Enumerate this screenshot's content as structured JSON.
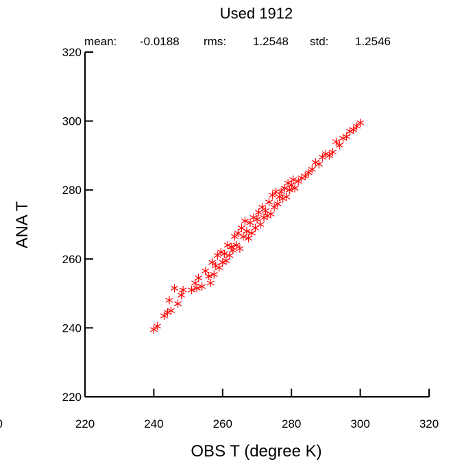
{
  "stats": {
    "mean_label": "mean:",
    "mean_value": "-0.0188",
    "rms_label": "rms:",
    "rms_value": "1.2548",
    "std_label": "std:",
    "std_value": "1.2546"
  },
  "colors": {
    "marker": "#ff0000",
    "axis": "#000000"
  },
  "chart_data": {
    "type": "scatter",
    "title": "Used  1912",
    "xlabel": "OBS T  (degree K)",
    "ylabel": "ANA T",
    "xlim": [
      220,
      320
    ],
    "ylim": [
      220,
      320
    ],
    "xticks": [
      "220",
      "240",
      "260",
      "280",
      "300",
      "320"
    ],
    "yticks": [
      "220",
      "240",
      "260",
      "280",
      "300",
      "320"
    ],
    "clipped_left_tick": "0",
    "marker": "asterisk",
    "grid": false,
    "x": [
      240,
      241,
      243,
      244,
      244.5,
      245,
      246,
      247,
      248,
      248.5,
      251,
      252,
      252.5,
      253,
      254,
      255,
      256,
      256.5,
      257,
      257.5,
      258,
      258.5,
      259,
      259.5,
      260,
      260.5,
      261,
      261.5,
      262,
      262.5,
      263,
      263.5,
      264,
      264.5,
      265,
      265.5,
      266,
      266.5,
      267,
      267.5,
      268,
      268.5,
      269,
      269.5,
      270,
      270.5,
      271,
      271.5,
      272,
      272.5,
      273,
      273.5,
      274,
      274.5,
      275,
      275.5,
      276,
      276.5,
      277,
      277.5,
      278,
      278.5,
      279,
      279.5,
      280,
      280.5,
      281,
      282,
      283,
      284,
      285,
      286,
      287,
      288,
      289,
      290,
      291,
      292,
      293,
      294,
      295,
      296,
      297,
      298,
      299,
      300
    ],
    "y": [
      239.5,
      240.5,
      243.5,
      244.5,
      248,
      245,
      251.5,
      247,
      249.5,
      251,
      251,
      253,
      251.5,
      254.5,
      252,
      256.5,
      255,
      253,
      259,
      255.5,
      258,
      261,
      257.5,
      262,
      259,
      261.5,
      259.5,
      264,
      261,
      263.5,
      262.5,
      266.5,
      264,
      267.5,
      263,
      269,
      266.5,
      271,
      268,
      266,
      270.5,
      267.5,
      272,
      269,
      271.5,
      273.5,
      270,
      275,
      272,
      274,
      272.5,
      276.5,
      273,
      278.5,
      275,
      279.5,
      276,
      278,
      279.5,
      277.5,
      280.5,
      278,
      282,
      280,
      281.5,
      283,
      280.5,
      282.5,
      283.5,
      284,
      285,
      286,
      288,
      287.5,
      289.5,
      290.5,
      290,
      291,
      294,
      293,
      295,
      295.5,
      297,
      297.5,
      298.5,
      299.5
    ]
  }
}
